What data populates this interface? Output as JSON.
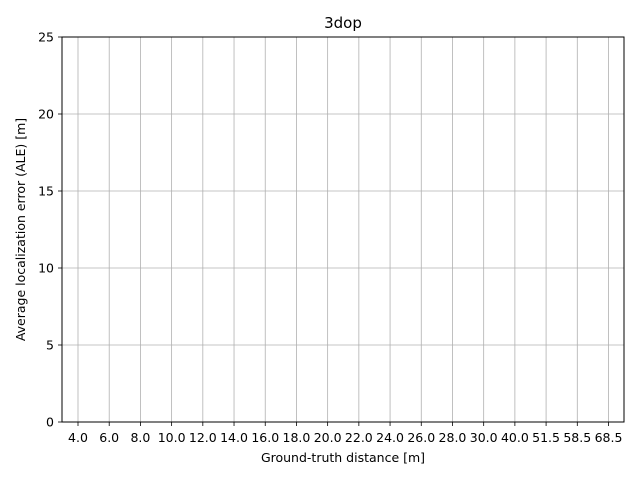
{
  "chart_data": {
    "type": "line",
    "title": "3dop",
    "xlabel": "Ground-truth distance [m]",
    "ylabel": "Average localization error (ALE) [m]",
    "categories": [
      "4.0",
      "6.0",
      "8.0",
      "10.0",
      "12.0",
      "14.0",
      "16.0",
      "18.0",
      "20.0",
      "22.0",
      "24.0",
      "26.0",
      "28.0",
      "30.0",
      "40.0",
      "51.5",
      "58.5",
      "68.5"
    ],
    "yticks": [
      "0",
      "5",
      "10",
      "15",
      "20",
      "25"
    ],
    "ylim": [
      0,
      25
    ],
    "grid": true,
    "series": [],
    "colors": {
      "grid": "#b0b0b0",
      "axis": "#000000",
      "background": "#ffffff"
    }
  }
}
